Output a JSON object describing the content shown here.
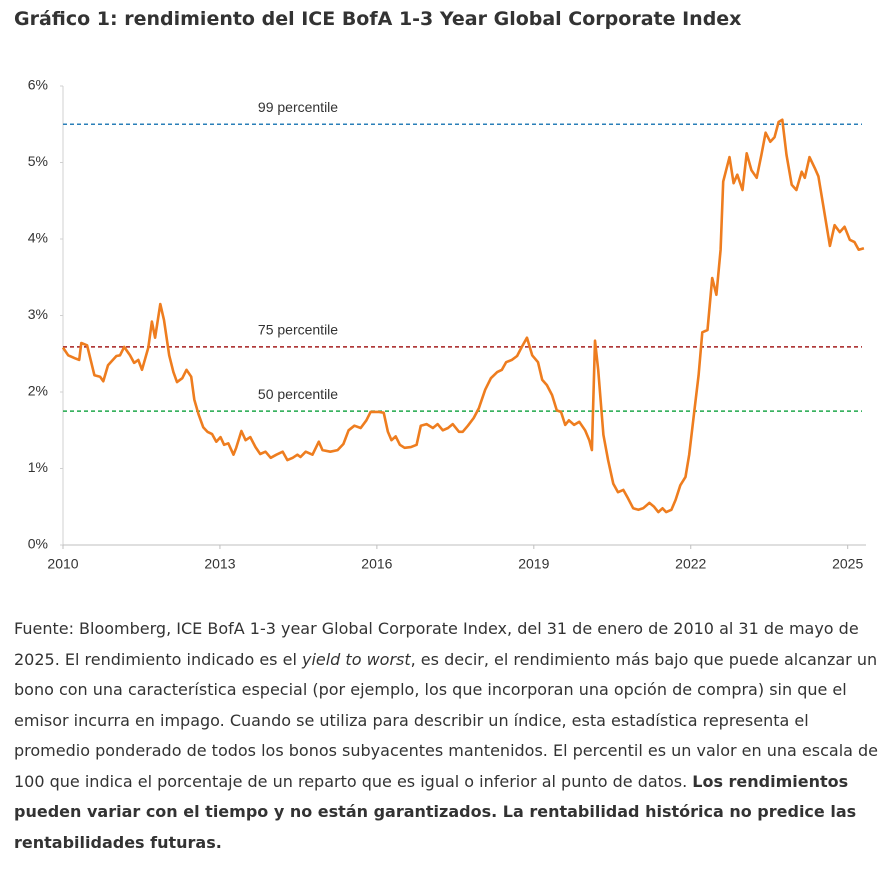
{
  "chart_data": {
    "type": "line",
    "title": "Gráfico 1: rendimiento del ICE BofA 1-3 Year Global Corporate Index",
    "color": "#ee7d1f",
    "x": [
      2010.0,
      2010.1,
      2010.23,
      2010.31,
      2010.35,
      2010.46,
      2010.6,
      2010.71,
      2010.77,
      2010.86,
      2011.02,
      2011.09,
      2011.17,
      2011.28,
      2011.36,
      2011.44,
      2011.51,
      2011.63,
      2011.7,
      2011.76,
      2011.86,
      2011.93,
      2012.03,
      2012.11,
      2012.18,
      2012.28,
      2012.36,
      2012.45,
      2012.51,
      2012.59,
      2012.68,
      2012.76,
      2012.85,
      2012.93,
      2013.01,
      2013.08,
      2013.16,
      2013.26,
      2013.31,
      2013.41,
      2013.49,
      2013.58,
      2013.68,
      2013.77,
      2013.87,
      2013.97,
      2014.08,
      2014.2,
      2014.29,
      2014.39,
      2014.48,
      2014.54,
      2014.64,
      2014.77,
      2014.89,
      2014.96,
      2015.11,
      2015.25,
      2015.36,
      2015.46,
      2015.57,
      2015.69,
      2015.8,
      2015.88,
      2016.03,
      2016.13,
      2016.21,
      2016.28,
      2016.36,
      2016.44,
      2016.53,
      2016.65,
      2016.76,
      2016.84,
      2016.95,
      2017.07,
      2017.16,
      2017.26,
      2017.36,
      2017.45,
      2017.57,
      2017.64,
      2017.74,
      2017.85,
      2017.95,
      2018.07,
      2018.18,
      2018.3,
      2018.39,
      2018.47,
      2018.58,
      2018.68,
      2018.77,
      2018.87,
      2018.97,
      2019.08,
      2019.16,
      2019.25,
      2019.35,
      2019.44,
      2019.52,
      2019.6,
      2019.67,
      2019.77,
      2019.87,
      2019.98,
      2020.06,
      2020.11,
      2020.17,
      2020.23,
      2020.33,
      2020.42,
      2020.52,
      2020.61,
      2020.71,
      2020.8,
      2020.9,
      2021.0,
      2021.09,
      2021.21,
      2021.3,
      2021.38,
      2021.46,
      2021.53,
      2021.63,
      2021.71,
      2021.8,
      2021.9,
      2021.97,
      2022.07,
      2022.15,
      2022.22,
      2022.32,
      2022.41,
      2022.49,
      2022.57,
      2022.62,
      2022.74,
      2022.82,
      2022.89,
      2022.99,
      2023.07,
      2023.16,
      2023.26,
      2023.35,
      2023.43,
      2023.52,
      2023.6,
      2023.68,
      2023.75,
      2023.83,
      2023.93,
      2024.02,
      2024.12,
      2024.18,
      2024.27,
      2024.37,
      2024.44,
      2024.54,
      2024.66,
      2024.75,
      2024.85,
      2024.94,
      2025.04,
      2025.13,
      2025.21,
      2025.31
    ],
    "values": [
      2.58,
      2.48,
      2.44,
      2.42,
      2.64,
      2.61,
      2.22,
      2.2,
      2.14,
      2.35,
      2.47,
      2.48,
      2.59,
      2.48,
      2.38,
      2.42,
      2.29,
      2.58,
      2.92,
      2.71,
      3.15,
      2.94,
      2.48,
      2.26,
      2.13,
      2.18,
      2.29,
      2.2,
      1.9,
      1.71,
      1.54,
      1.48,
      1.45,
      1.35,
      1.41,
      1.31,
      1.33,
      1.18,
      1.27,
      1.49,
      1.37,
      1.41,
      1.28,
      1.19,
      1.22,
      1.14,
      1.18,
      1.22,
      1.11,
      1.14,
      1.18,
      1.15,
      1.22,
      1.18,
      1.35,
      1.24,
      1.22,
      1.24,
      1.32,
      1.5,
      1.56,
      1.53,
      1.63,
      1.74,
      1.74,
      1.73,
      1.48,
      1.37,
      1.42,
      1.31,
      1.27,
      1.28,
      1.31,
      1.56,
      1.58,
      1.53,
      1.58,
      1.5,
      1.53,
      1.58,
      1.48,
      1.48,
      1.56,
      1.66,
      1.79,
      2.03,
      2.18,
      2.26,
      2.29,
      2.39,
      2.42,
      2.47,
      2.59,
      2.71,
      2.48,
      2.39,
      2.16,
      2.09,
      1.96,
      1.76,
      1.74,
      1.57,
      1.63,
      1.57,
      1.61,
      1.5,
      1.37,
      1.24,
      2.67,
      2.29,
      1.44,
      1.11,
      0.8,
      0.69,
      0.72,
      0.61,
      0.48,
      0.46,
      0.48,
      0.55,
      0.5,
      0.43,
      0.48,
      0.43,
      0.46,
      0.59,
      0.78,
      0.89,
      1.18,
      1.76,
      2.22,
      2.78,
      2.81,
      3.49,
      3.27,
      3.86,
      4.75,
      5.07,
      4.73,
      4.84,
      4.64,
      5.12,
      4.9,
      4.8,
      5.1,
      5.39,
      5.27,
      5.33,
      5.53,
      5.56,
      5.1,
      4.71,
      4.64,
      4.88,
      4.8,
      5.07,
      4.93,
      4.82,
      4.41,
      3.91,
      4.18,
      4.09,
      4.16,
      3.99,
      3.96,
      3.86,
      3.88
    ],
    "xlim": [
      2010,
      2025.35
    ],
    "xticks": [
      2010,
      2013,
      2016,
      2019,
      2022,
      2025
    ],
    "ylim": [
      0,
      6
    ],
    "yticks": [
      {
        "value": 0,
        "label": "0%"
      },
      {
        "value": 1,
        "label": "1%"
      },
      {
        "value": 2,
        "label": "2%"
      },
      {
        "value": 3,
        "label": "3%"
      },
      {
        "value": 4,
        "label": "4%"
      },
      {
        "value": 5,
        "label": "5%"
      },
      {
        "value": 6,
        "label": "6%"
      }
    ],
    "reference_lines": [
      {
        "label": "99 percentile",
        "value": 5.5,
        "color": "#2a7fb8"
      },
      {
        "label": "75 percentile",
        "value": 2.59,
        "color": "#a51e1e"
      },
      {
        "label": "50 percentile",
        "value": 1.75,
        "color": "#1fa84a"
      }
    ]
  },
  "caption": [
    "Fuente: Bloomberg, ICE BofA 1-3 year Global Corporate Index, del 31 de enero de 2010 al 31 de mayo de 2025. El rendimiento indicado es el ",
    "yield to worst",
    ", es decir, el rendimiento más bajo que puede alcanzar un bono con una característica especial (por ejemplo, los que incorporan una opción de compra) sin que el emisor incurra en impago. Cuando se utiliza para describir un índice, esta estadística representa el promedio ponderado de todos los bonos subyacentes mantenidos. El percentil es un valor en una escala de 100 que indica el porcentaje de un reparto que es igual o inferior al punto de datos. ",
    "Los rendimientos pueden variar con el tiempo y no están garantizados. La rentabilidad histórica no predice las rentabilidades futuras."
  ]
}
